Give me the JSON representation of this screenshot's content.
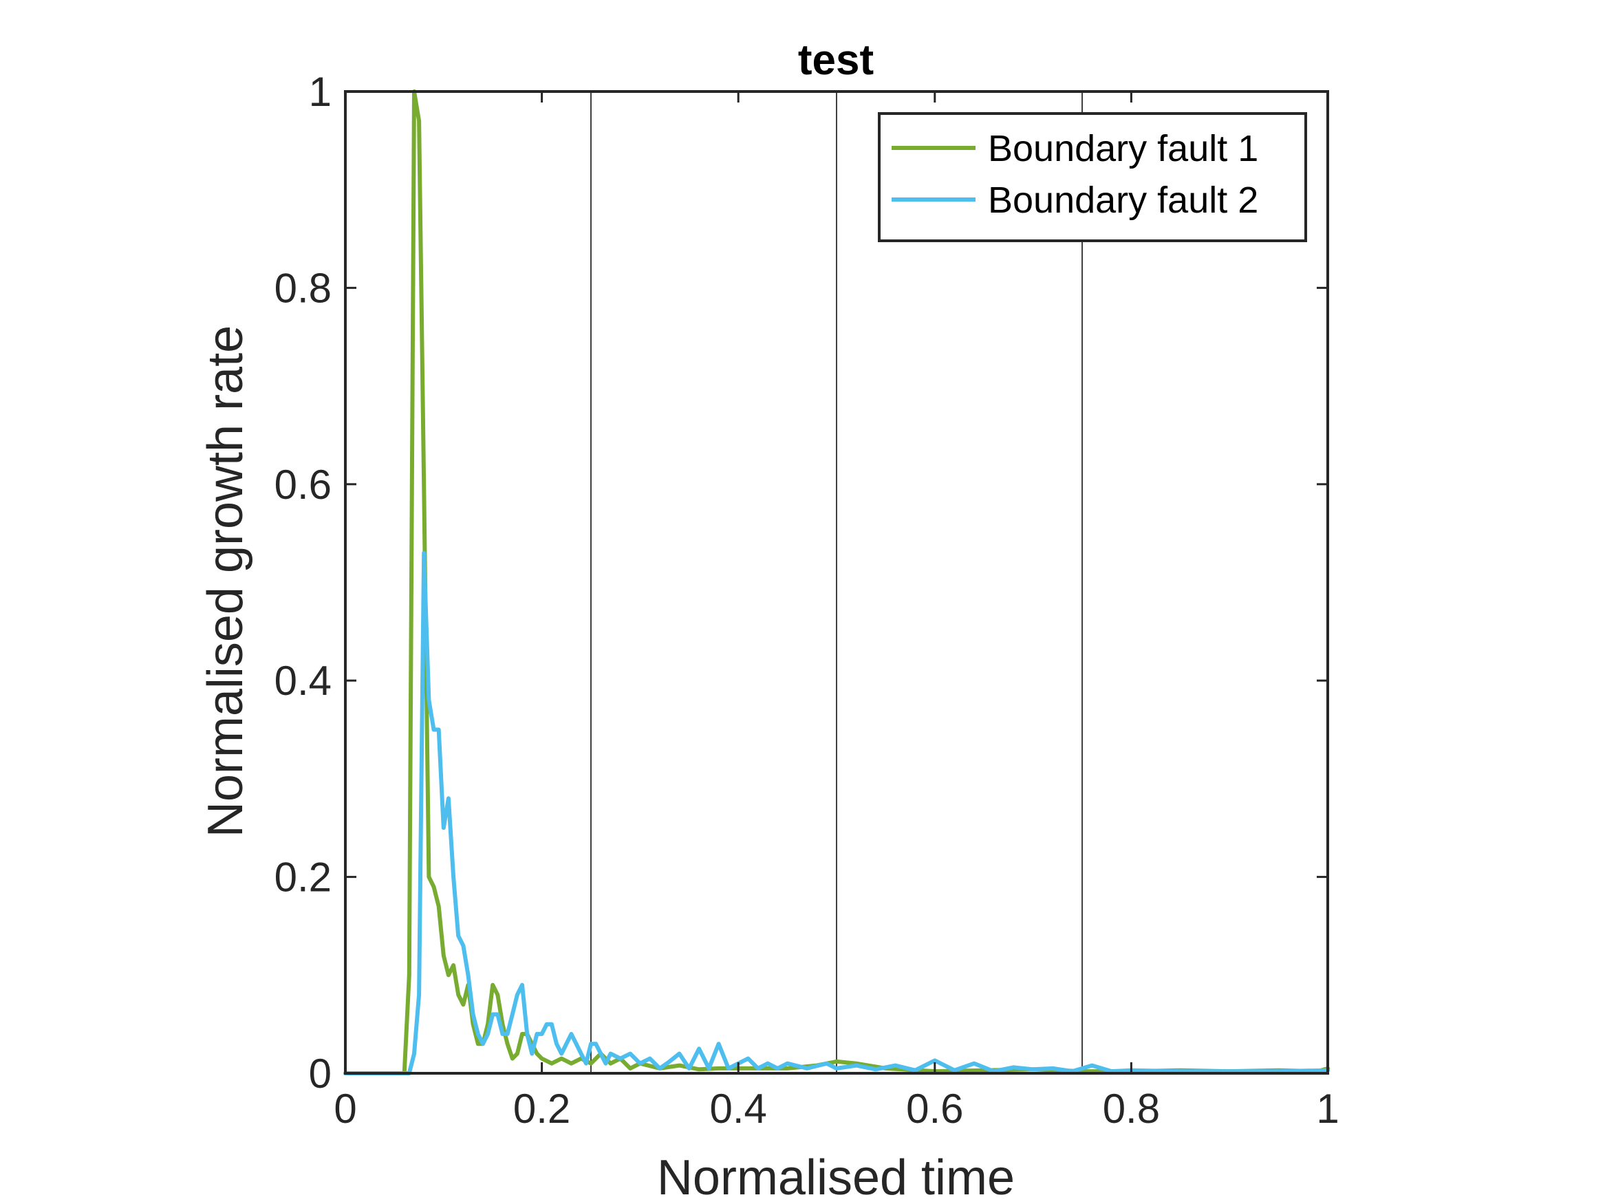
{
  "chart_data": {
    "type": "line",
    "title": "test",
    "xlabel": "Normalised time",
    "ylabel": "Normalised growth rate",
    "xlim": [
      0,
      1
    ],
    "ylim": [
      0,
      1
    ],
    "xticks": [
      "0",
      "0.2",
      "0.4",
      "0.6",
      "0.8",
      "1"
    ],
    "yticks": [
      "0",
      "0.2",
      "0.4",
      "0.6",
      "0.8",
      "1"
    ],
    "vertical_reference_lines": [
      0.25,
      0.5,
      0.75
    ],
    "grid": false,
    "legend_position": "top-right",
    "series": [
      {
        "name": "Boundary fault 1",
        "color": "#77AC30",
        "x": [
          0.0,
          0.06,
          0.065,
          0.07,
          0.075,
          0.08,
          0.085,
          0.09,
          0.095,
          0.1,
          0.105,
          0.11,
          0.115,
          0.12,
          0.125,
          0.13,
          0.135,
          0.14,
          0.145,
          0.15,
          0.155,
          0.16,
          0.165,
          0.17,
          0.175,
          0.18,
          0.185,
          0.19,
          0.195,
          0.2,
          0.21,
          0.22,
          0.23,
          0.24,
          0.25,
          0.26,
          0.27,
          0.28,
          0.29,
          0.3,
          0.32,
          0.34,
          0.36,
          0.38,
          0.4,
          0.45,
          0.48,
          0.5,
          0.52,
          0.55,
          0.6,
          0.65,
          0.7,
          0.75,
          0.8,
          0.85,
          0.9,
          0.95,
          0.99,
          1.0
        ],
        "y": [
          0.0,
          0.0,
          0.1,
          1.0,
          0.97,
          0.6,
          0.2,
          0.19,
          0.17,
          0.12,
          0.1,
          0.11,
          0.08,
          0.07,
          0.09,
          0.05,
          0.03,
          0.03,
          0.05,
          0.09,
          0.08,
          0.05,
          0.03,
          0.015,
          0.02,
          0.04,
          0.04,
          0.03,
          0.02,
          0.015,
          0.01,
          0.015,
          0.01,
          0.015,
          0.01,
          0.02,
          0.01,
          0.015,
          0.005,
          0.01,
          0.005,
          0.008,
          0.004,
          0.005,
          0.005,
          0.005,
          0.008,
          0.012,
          0.01,
          0.005,
          0.002,
          0.003,
          0.004,
          0.002,
          0.002,
          0.003,
          0.002,
          0.003,
          0.002,
          0.005
        ]
      },
      {
        "name": "Boundary fault 2",
        "color": "#4DBEEE",
        "x": [
          0.0,
          0.065,
          0.07,
          0.075,
          0.08,
          0.085,
          0.09,
          0.095,
          0.1,
          0.105,
          0.11,
          0.115,
          0.12,
          0.125,
          0.13,
          0.135,
          0.14,
          0.145,
          0.15,
          0.155,
          0.16,
          0.165,
          0.17,
          0.175,
          0.18,
          0.185,
          0.19,
          0.195,
          0.2,
          0.205,
          0.21,
          0.215,
          0.22,
          0.225,
          0.23,
          0.235,
          0.24,
          0.245,
          0.25,
          0.255,
          0.26,
          0.265,
          0.27,
          0.28,
          0.29,
          0.3,
          0.31,
          0.32,
          0.33,
          0.34,
          0.35,
          0.36,
          0.37,
          0.38,
          0.39,
          0.4,
          0.41,
          0.42,
          0.43,
          0.44,
          0.45,
          0.47,
          0.49,
          0.5,
          0.52,
          0.54,
          0.56,
          0.58,
          0.6,
          0.62,
          0.64,
          0.66,
          0.68,
          0.7,
          0.72,
          0.74,
          0.76,
          0.78,
          0.8,
          0.85,
          0.9,
          0.95,
          1.0
        ],
        "y": [
          0.0,
          0.0,
          0.02,
          0.08,
          0.53,
          0.38,
          0.35,
          0.35,
          0.25,
          0.28,
          0.2,
          0.14,
          0.13,
          0.1,
          0.06,
          0.04,
          0.03,
          0.04,
          0.06,
          0.06,
          0.04,
          0.04,
          0.06,
          0.08,
          0.09,
          0.04,
          0.02,
          0.04,
          0.04,
          0.05,
          0.05,
          0.03,
          0.02,
          0.03,
          0.04,
          0.03,
          0.02,
          0.01,
          0.03,
          0.03,
          0.02,
          0.01,
          0.02,
          0.015,
          0.02,
          0.01,
          0.015,
          0.005,
          0.012,
          0.02,
          0.005,
          0.025,
          0.005,
          0.03,
          0.005,
          0.01,
          0.015,
          0.005,
          0.01,
          0.005,
          0.01,
          0.005,
          0.01,
          0.005,
          0.008,
          0.004,
          0.008,
          0.003,
          0.013,
          0.003,
          0.01,
          0.002,
          0.006,
          0.004,
          0.005,
          0.002,
          0.008,
          0.002,
          0.003,
          0.002,
          0.002,
          0.002,
          0.003
        ]
      }
    ]
  }
}
